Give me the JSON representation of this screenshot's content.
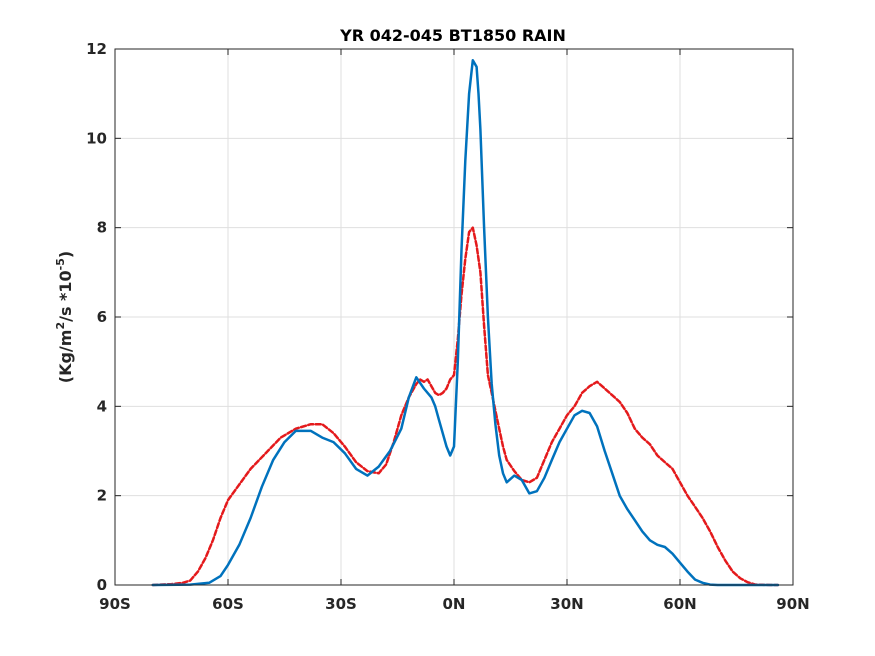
{
  "chart_data": {
    "type": "line",
    "title": "YR 042-045 BT1850 RAIN",
    "ylabel": {
      "base": "(Kg/m",
      "exp1": "2",
      "mid": "/s   *10",
      "exp2": "-5",
      "end": ")"
    },
    "xlabel": "",
    "xlim": [
      -90,
      90
    ],
    "ylim": [
      0,
      12
    ],
    "grid": true,
    "x_ticks": [
      {
        "value": -90,
        "label": "90S"
      },
      {
        "value": -60,
        "label": "60S"
      },
      {
        "value": -30,
        "label": "30S"
      },
      {
        "value": 0,
        "label": "0N"
      },
      {
        "value": 30,
        "label": "30N"
      },
      {
        "value": 60,
        "label": "60N"
      },
      {
        "value": 90,
        "label": "90N"
      }
    ],
    "y_ticks": [
      {
        "value": 0,
        "label": "0"
      },
      {
        "value": 2,
        "label": "2"
      },
      {
        "value": 4,
        "label": "4"
      },
      {
        "value": 6,
        "label": "6"
      },
      {
        "value": 8,
        "label": "8"
      },
      {
        "value": 10,
        "label": "10"
      },
      {
        "value": 12,
        "label": "12"
      }
    ],
    "series": [
      {
        "color": "#0072bd",
        "dash": "solid",
        "x": [
          -80,
          -70,
          -65,
          -62,
          -60,
          -57,
          -54,
          -51,
          -48,
          -45,
          -42,
          -38,
          -35,
          -32,
          -29,
          -26,
          -23,
          -20,
          -17,
          -14,
          -12,
          -10,
          -8,
          -6,
          -5,
          -4,
          -2,
          -1,
          0,
          1,
          2,
          3,
          4,
          5,
          6,
          6.5,
          7,
          8,
          9,
          10,
          11,
          12,
          13,
          14,
          16,
          18,
          20,
          22,
          24,
          26,
          28,
          30,
          32,
          34,
          36,
          38,
          40,
          42,
          44,
          46,
          48,
          50,
          52,
          54,
          56,
          58,
          60,
          62,
          64,
          66,
          68,
          70,
          72,
          75,
          80,
          86
        ],
        "y": [
          0,
          0.01,
          0.05,
          0.2,
          0.45,
          0.9,
          1.5,
          2.2,
          2.8,
          3.2,
          3.45,
          3.45,
          3.3,
          3.2,
          2.95,
          2.6,
          2.45,
          2.65,
          3.0,
          3.5,
          4.2,
          4.65,
          4.4,
          4.2,
          4.0,
          3.7,
          3.1,
          2.9,
          3.1,
          5.0,
          7.5,
          9.5,
          11.0,
          11.75,
          11.6,
          11.0,
          10.2,
          8.0,
          6.0,
          4.5,
          3.6,
          2.9,
          2.5,
          2.3,
          2.45,
          2.35,
          2.05,
          2.1,
          2.4,
          2.8,
          3.2,
          3.5,
          3.8,
          3.9,
          3.85,
          3.55,
          3.0,
          2.5,
          2.0,
          1.7,
          1.45,
          1.2,
          1.0,
          0.9,
          0.85,
          0.7,
          0.5,
          0.3,
          0.12,
          0.05,
          0.01,
          0,
          0,
          0,
          0,
          0
        ]
      },
      {
        "color": "#e41a1c",
        "dash": "dashed",
        "x": [
          -80,
          -75,
          -72,
          -70,
          -68,
          -66,
          -64,
          -62,
          -60,
          -57,
          -54,
          -50,
          -46,
          -42,
          -38,
          -35,
          -32,
          -29,
          -26,
          -23,
          -20,
          -18,
          -16,
          -14,
          -12,
          -10,
          -9,
          -8,
          -7,
          -6,
          -5,
          -4,
          -3,
          -2,
          -1,
          0,
          1,
          2,
          3,
          4,
          5,
          6,
          7,
          8,
          9,
          10,
          11,
          12,
          13,
          14,
          16,
          18,
          20,
          22,
          24,
          26,
          28,
          30,
          32,
          34,
          36,
          38,
          40,
          42,
          44,
          46,
          48,
          50,
          52,
          54,
          56,
          58,
          60,
          62,
          64,
          66,
          68,
          70,
          72,
          74,
          76,
          78,
          80,
          84,
          86
        ],
        "y": [
          0,
          0.02,
          0.05,
          0.1,
          0.3,
          0.6,
          1.0,
          1.5,
          1.9,
          2.25,
          2.6,
          2.95,
          3.3,
          3.5,
          3.6,
          3.6,
          3.4,
          3.1,
          2.75,
          2.55,
          2.5,
          2.7,
          3.2,
          3.8,
          4.2,
          4.5,
          4.6,
          4.55,
          4.6,
          4.45,
          4.3,
          4.25,
          4.3,
          4.4,
          4.6,
          4.7,
          5.5,
          6.5,
          7.3,
          7.9,
          8.0,
          7.6,
          7.0,
          5.8,
          4.7,
          4.3,
          3.9,
          3.5,
          3.1,
          2.8,
          2.55,
          2.35,
          2.3,
          2.4,
          2.8,
          3.2,
          3.5,
          3.8,
          4.0,
          4.3,
          4.45,
          4.55,
          4.4,
          4.25,
          4.1,
          3.85,
          3.5,
          3.3,
          3.15,
          2.9,
          2.75,
          2.6,
          2.3,
          2.0,
          1.75,
          1.5,
          1.2,
          0.85,
          0.55,
          0.3,
          0.15,
          0.06,
          0.01,
          0,
          0
        ]
      }
    ]
  }
}
